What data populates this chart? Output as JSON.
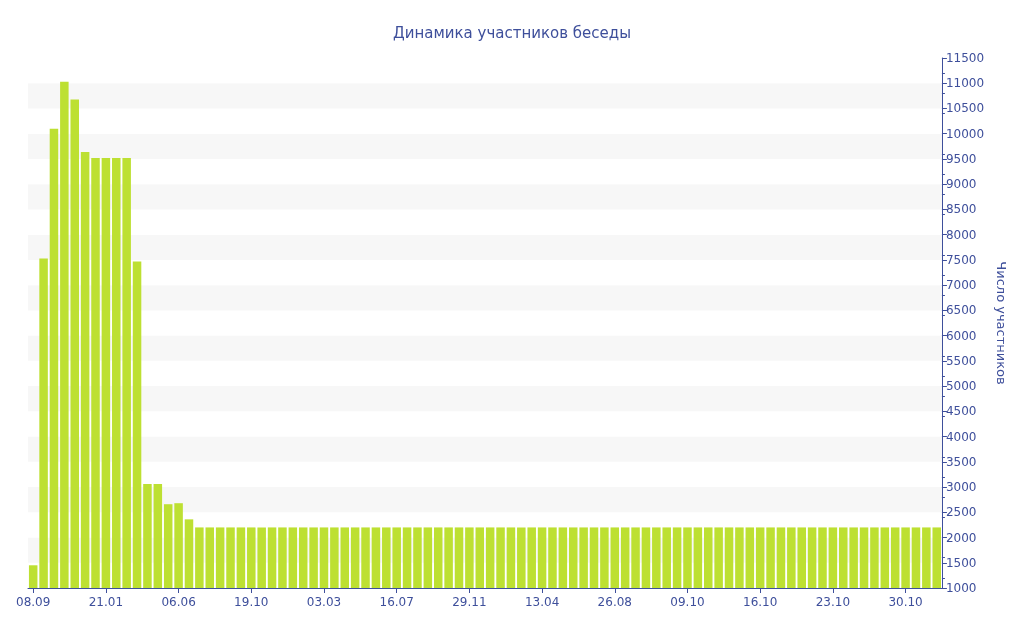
{
  "chart_data": {
    "type": "bar",
    "title": "Динамика участников беседы",
    "ylabel": "Число участников",
    "categories": [
      "08.09",
      null,
      null,
      null,
      null,
      null,
      null,
      "21.01",
      null,
      null,
      null,
      null,
      null,
      null,
      "06.06",
      null,
      null,
      null,
      null,
      null,
      null,
      "19.10",
      null,
      null,
      null,
      null,
      null,
      null,
      "03.03",
      null,
      null,
      null,
      null,
      null,
      null,
      "16.07",
      null,
      null,
      null,
      null,
      null,
      null,
      "29.11",
      null,
      null,
      null,
      null,
      null,
      null,
      "13.04",
      null,
      null,
      null,
      null,
      null,
      null,
      "26.08",
      null,
      null,
      null,
      null,
      null,
      null,
      "09.10",
      null,
      null,
      null,
      null,
      null,
      null,
      "16.10",
      null,
      null,
      null,
      null,
      null,
      null,
      "23.10",
      null,
      null,
      null,
      null,
      null,
      null,
      "30.10",
      null,
      null,
      null
    ],
    "values": [
      1450,
      7530,
      10100,
      11030,
      10680,
      9640,
      9520,
      9520,
      9520,
      9520,
      7470,
      3060,
      3060,
      2660,
      2680,
      2360,
      2200,
      2200,
      2200,
      2200,
      2200,
      2200,
      2200,
      2200,
      2200,
      2200,
      2200,
      2200,
      2200,
      2200,
      2200,
      2200,
      2200,
      2200,
      2200,
      2200,
      2200,
      2200,
      2200,
      2200,
      2200,
      2200,
      2200,
      2200,
      2200,
      2200,
      2200,
      2200,
      2200,
      2200,
      2200,
      2200,
      2200,
      2200,
      2200,
      2200,
      2200,
      2200,
      2200,
      2200,
      2200,
      2200,
      2200,
      2200,
      2200,
      2200,
      2200,
      2200,
      2200,
      2200,
      2200,
      2200,
      2200,
      2200,
      2200,
      2200,
      2200,
      2200,
      2200,
      2200,
      2200,
      2200,
      2200,
      2200,
      2200,
      2200,
      2200,
      2200
    ],
    "color": "#bde032",
    "ylim": [
      1000,
      11500
    ],
    "yticks": [
      1000,
      1500,
      2000,
      2500,
      3000,
      3500,
      4000,
      4500,
      5000,
      5500,
      6000,
      6500,
      7000,
      7500,
      8000,
      8500,
      9000,
      9500,
      10000,
      10500,
      11000,
      11500
    ],
    "grid": false
  }
}
